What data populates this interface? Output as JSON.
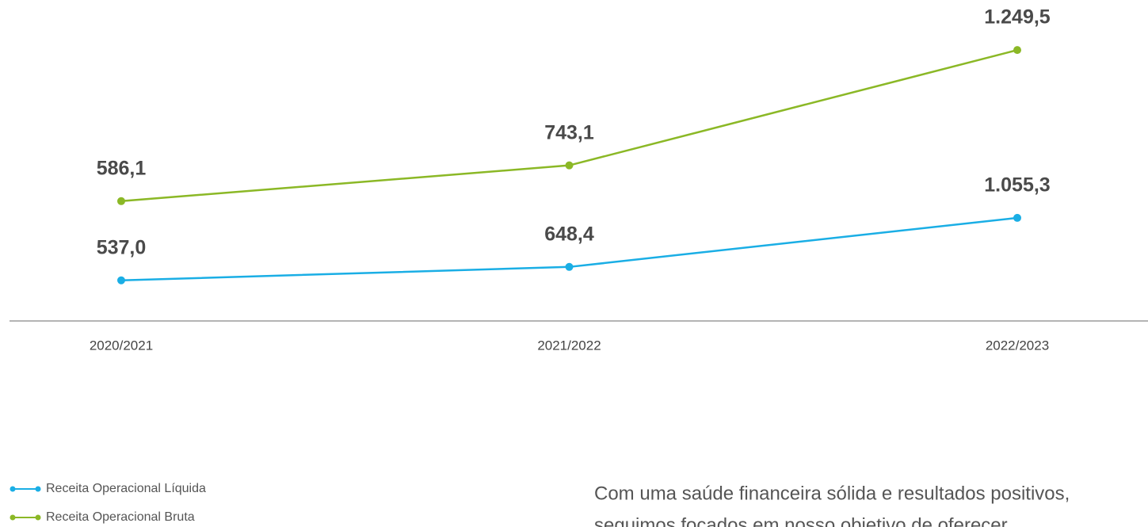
{
  "chart_data": {
    "type": "line",
    "categories": [
      "2020/2021",
      "2021/2022",
      "2022/2023"
    ],
    "series": [
      {
        "name": "Receita Operacional Líquida",
        "color": "#1aaee5",
        "values": [
          537.0,
          648.4,
          1055.3
        ],
        "value_labels": [
          "537,0",
          "648,4",
          "1.055,3"
        ]
      },
      {
        "name": "Receita Operacional Bruta",
        "color": "#8bb826",
        "values": [
          586.1,
          743.1,
          1249.5
        ],
        "value_labels": [
          "586,1",
          "743,1",
          "1.249,5"
        ],
        "axis": "y2"
      }
    ],
    "ylim": [
      200,
      2600
    ],
    "y2lim": [
      60,
      1330
    ],
    "legend": "bottom-left"
  },
  "paragraph": {
    "lines": [
      "Com uma saúde financeira sólida e resultados positivos,",
      "seguimos focados em nosso objetivo de oferecer"
    ]
  }
}
